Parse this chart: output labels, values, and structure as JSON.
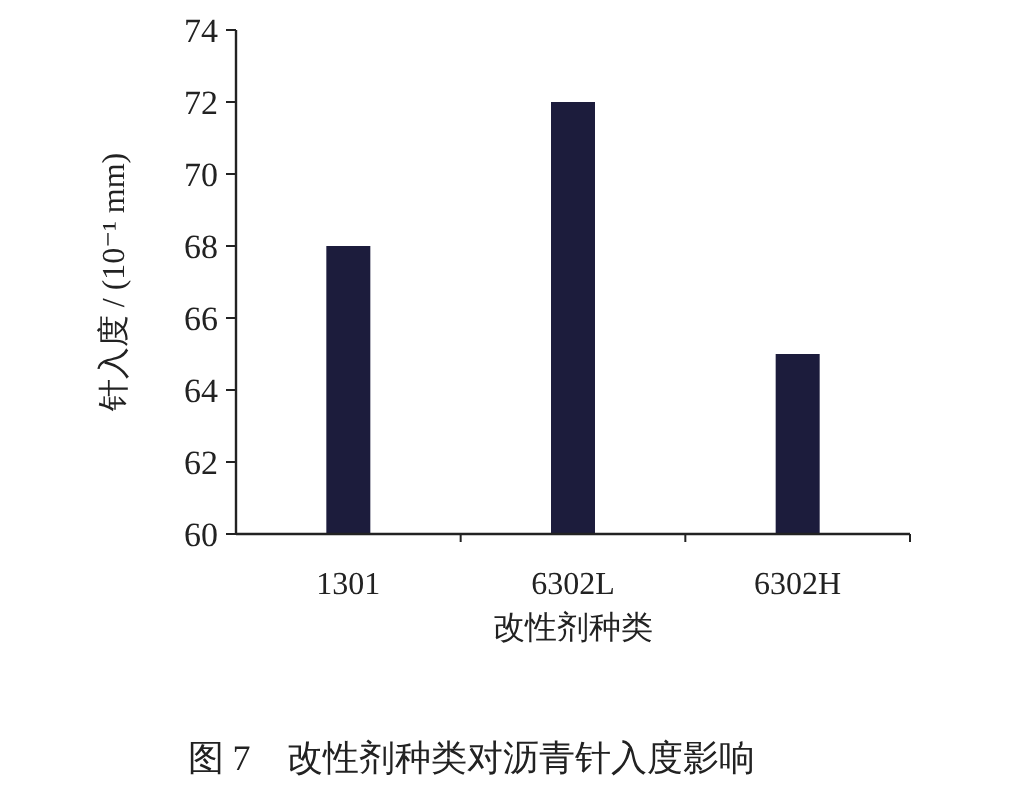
{
  "chart_data": {
    "type": "bar",
    "categories": [
      "1301",
      "6302L",
      "6302H"
    ],
    "values": [
      68,
      72,
      65
    ],
    "color": "#1c1c3c",
    "ylim": [
      60,
      74
    ],
    "yticks": [
      60,
      62,
      64,
      66,
      68,
      70,
      72,
      74
    ],
    "xlabel": "改性剂种类",
    "ylabel": "针入度 / (10⁻¹ mm)",
    "annotations": [
      "图 7　改性剂种类对沥青针入度影响"
    ]
  }
}
